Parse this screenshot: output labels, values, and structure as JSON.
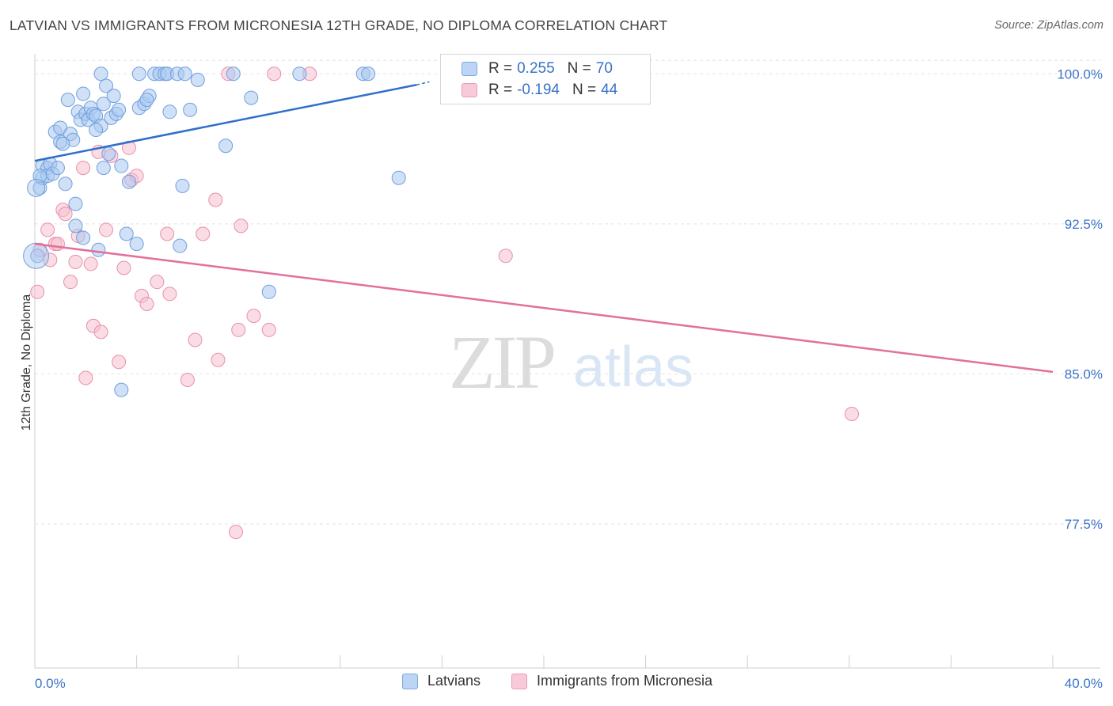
{
  "header": {
    "title": "LATVIAN VS IMMIGRANTS FROM MICRONESIA 12TH GRADE, NO DIPLOMA CORRELATION CHART",
    "source": "Source: ZipAtlas.com"
  },
  "watermark": {
    "zip": "ZIP",
    "atlas": "atlas"
  },
  "legend_top": {
    "rows": [
      {
        "r_label": "R =",
        "r_value": "0.255",
        "n_label": "N =",
        "n_value": "70"
      },
      {
        "r_label": "R =",
        "r_value": "-0.194",
        "n_label": "N =",
        "n_value": "44"
      }
    ]
  },
  "legend_bottom": {
    "items": [
      "Latvians",
      "Immigrants from Micronesia"
    ]
  },
  "colors": {
    "blue_fill": "#a9c8f0",
    "blue_stroke": "#6f9fdd",
    "blue_line": "#2f6ecb",
    "pink_fill": "#f6bfd0",
    "pink_stroke": "#e98fab",
    "pink_line": "#e2709a",
    "tick_label": "#3b73c7",
    "grid": "#e3e3e3"
  },
  "chart_data": {
    "type": "scatter",
    "title": "LATVIAN VS IMMIGRANTS FROM MICRONESIA 12TH GRADE, NO DIPLOMA CORRELATION CHART",
    "xlabel": "",
    "ylabel": "12th Grade, No Diploma",
    "xlim": [
      0,
      40
    ],
    "ylim": [
      70.3,
      101.0
    ],
    "x_tick_labels": [
      "0.0%",
      "40.0%"
    ],
    "y_ticks": [
      77.5,
      85.0,
      92.5,
      100.0
    ],
    "y_tick_labels": [
      "77.5%",
      "85.0%",
      "92.5%",
      "100.0%"
    ],
    "grid": true,
    "legend_position": "bottom",
    "series": [
      {
        "name": "Latvians",
        "color": "#a9c8f0",
        "R": 0.255,
        "N": 70,
        "trend": {
          "x": [
            0,
            15.0
          ],
          "y": [
            95.65,
            99.45
          ],
          "dashed_to": [
            15.5,
            99.6
          ]
        },
        "points": [
          [
            0.2,
            94.3
          ],
          [
            0.3,
            94.8
          ],
          [
            0.3,
            95.4
          ],
          [
            0.5,
            95.3
          ],
          [
            0.5,
            94.9
          ],
          [
            0.6,
            95.5
          ],
          [
            0.7,
            95.0
          ],
          [
            0.8,
            97.1
          ],
          [
            0.9,
            95.3
          ],
          [
            1.0,
            97.3
          ],
          [
            1.0,
            96.6
          ],
          [
            1.2,
            94.5
          ],
          [
            1.3,
            98.7
          ],
          [
            1.4,
            97.0
          ],
          [
            1.5,
            96.7
          ],
          [
            1.6,
            93.5
          ],
          [
            1.6,
            92.4
          ],
          [
            1.7,
            98.1
          ],
          [
            1.8,
            97.7
          ],
          [
            1.9,
            91.8
          ],
          [
            1.9,
            99.0
          ],
          [
            2.0,
            98.0
          ],
          [
            2.1,
            97.7
          ],
          [
            2.2,
            98.3
          ],
          [
            2.3,
            98.0
          ],
          [
            2.4,
            97.9
          ],
          [
            2.5,
            91.2
          ],
          [
            2.6,
            100.0
          ],
          [
            2.6,
            97.4
          ],
          [
            2.7,
            98.5
          ],
          [
            2.7,
            95.3
          ],
          [
            2.8,
            99.4
          ],
          [
            2.9,
            96.0
          ],
          [
            3.0,
            97.8
          ],
          [
            3.1,
            98.9
          ],
          [
            3.2,
            98.0
          ],
          [
            3.3,
            98.2
          ],
          [
            3.4,
            84.2
          ],
          [
            3.6,
            92.0
          ],
          [
            3.7,
            94.6
          ],
          [
            4.0,
            91.5
          ],
          [
            4.1,
            98.3
          ],
          [
            4.1,
            100.0
          ],
          [
            4.3,
            98.5
          ],
          [
            4.5,
            98.9
          ],
          [
            4.7,
            100.0
          ],
          [
            4.9,
            100.0
          ],
          [
            5.1,
            100.0
          ],
          [
            5.2,
            100.0
          ],
          [
            5.3,
            98.1
          ],
          [
            5.6,
            100.0
          ],
          [
            5.7,
            91.4
          ],
          [
            5.8,
            94.4
          ],
          [
            5.9,
            100.0
          ],
          [
            6.1,
            98.2
          ],
          [
            6.4,
            99.7
          ],
          [
            7.5,
            96.4
          ],
          [
            7.8,
            100.0
          ],
          [
            8.5,
            98.8
          ],
          [
            9.2,
            89.1
          ],
          [
            10.4,
            100.0
          ],
          [
            12.9,
            100.0
          ],
          [
            13.1,
            100.0
          ],
          [
            14.3,
            94.8
          ],
          [
            0.1,
            90.9
          ],
          [
            0.2,
            94.9
          ],
          [
            3.4,
            95.4
          ],
          [
            1.1,
            96.5
          ],
          [
            2.4,
            97.2
          ],
          [
            4.4,
            98.7
          ]
        ]
      },
      {
        "name": "Immigrants from Micronesia",
        "color": "#f6bfd0",
        "R": -0.194,
        "N": 44,
        "trend": {
          "x": [
            0,
            40
          ],
          "y": [
            91.5,
            85.1
          ]
        },
        "points": [
          [
            0.1,
            89.1
          ],
          [
            0.2,
            91.2
          ],
          [
            0.5,
            92.2
          ],
          [
            0.6,
            90.7
          ],
          [
            0.8,
            91.5
          ],
          [
            0.9,
            91.5
          ],
          [
            1.1,
            93.2
          ],
          [
            1.2,
            93.0
          ],
          [
            1.4,
            89.6
          ],
          [
            1.6,
            90.6
          ],
          [
            1.7,
            91.9
          ],
          [
            2.0,
            84.8
          ],
          [
            2.2,
            90.5
          ],
          [
            2.3,
            87.4
          ],
          [
            2.5,
            96.1
          ],
          [
            2.6,
            87.1
          ],
          [
            2.8,
            92.2
          ],
          [
            3.0,
            95.9
          ],
          [
            3.3,
            85.6
          ],
          [
            3.5,
            90.3
          ],
          [
            3.7,
            96.3
          ],
          [
            3.8,
            94.7
          ],
          [
            4.0,
            94.9
          ],
          [
            4.2,
            88.9
          ],
          [
            4.4,
            88.5
          ],
          [
            4.8,
            89.6
          ],
          [
            5.2,
            92.0
          ],
          [
            5.3,
            89.0
          ],
          [
            6.0,
            84.7
          ],
          [
            6.3,
            86.7
          ],
          [
            6.6,
            92.0
          ],
          [
            7.1,
            93.7
          ],
          [
            7.2,
            85.7
          ],
          [
            7.6,
            100.0
          ],
          [
            7.9,
            77.1
          ],
          [
            8.0,
            87.2
          ],
          [
            8.1,
            92.4
          ],
          [
            8.6,
            87.9
          ],
          [
            9.2,
            87.2
          ],
          [
            9.4,
            100.0
          ],
          [
            10.8,
            100.0
          ],
          [
            18.5,
            90.9
          ],
          [
            32.1,
            83.0
          ],
          [
            1.9,
            95.3
          ]
        ]
      }
    ]
  }
}
